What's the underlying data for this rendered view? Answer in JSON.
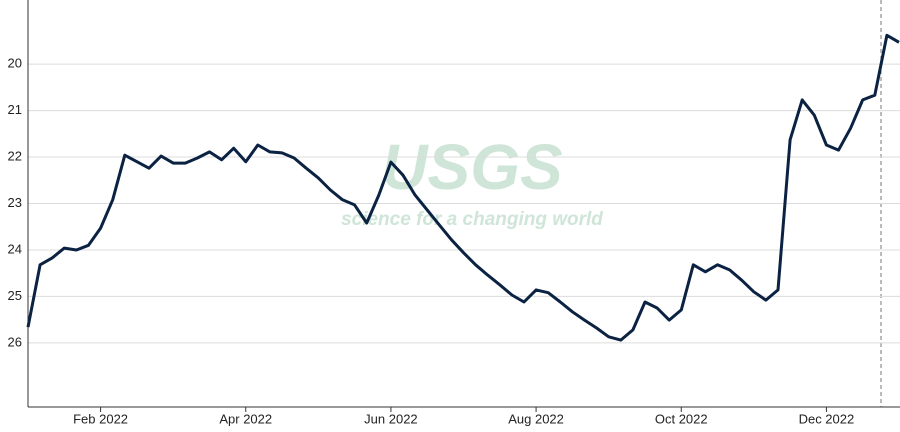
{
  "chart_data": {
    "type": "line",
    "watermark": {
      "title": "USGS",
      "subtitle": "science for a changing world"
    },
    "categories": [
      null,
      null,
      null,
      null,
      null,
      null,
      "Feb 2022",
      null,
      null,
      null,
      null,
      null,
      null,
      null,
      null,
      null,
      null,
      null,
      "Apr 2022",
      null,
      null,
      null,
      null,
      null,
      null,
      null,
      null,
      null,
      null,
      null,
      "Jun 2022",
      null,
      null,
      null,
      null,
      null,
      null,
      null,
      null,
      null,
      null,
      null,
      "Aug 2022",
      null,
      null,
      null,
      null,
      null,
      null,
      null,
      null,
      null,
      null,
      null,
      "Oct 2022",
      null,
      null,
      null,
      null,
      null,
      null,
      null,
      null,
      null,
      null,
      null,
      "Dec 2022",
      null,
      null,
      null,
      null,
      null,
      null
    ],
    "series": [
      {
        "color": "#0b2242",
        "values": [
          25.66,
          24.32,
          24.17,
          23.96,
          24.0,
          23.9,
          23.53,
          22.92,
          21.96,
          22.1,
          22.24,
          21.98,
          22.13,
          22.13,
          22.02,
          21.89,
          22.06,
          21.81,
          22.1,
          21.74,
          21.89,
          21.91,
          22.02,
          22.24,
          22.45,
          22.71,
          22.92,
          23.03,
          23.42,
          22.82,
          22.11,
          22.39,
          22.82,
          23.14,
          23.46,
          23.78,
          24.06,
          24.32,
          24.54,
          24.75,
          24.97,
          25.12,
          24.86,
          24.92,
          25.12,
          25.33,
          25.51,
          25.68,
          25.87,
          25.94,
          25.72,
          25.12,
          25.25,
          25.51,
          25.29,
          24.32,
          24.47,
          24.32,
          24.43,
          24.65,
          24.9,
          25.08,
          24.86,
          21.63,
          20.77,
          21.1,
          21.74,
          21.85,
          21.38,
          20.77,
          20.67,
          19.38,
          19.53
        ]
      }
    ],
    "ylim": [
      18.62,
      27.38
    ],
    "y_inverted": true,
    "yticks": [
      20,
      21,
      22,
      23,
      24,
      25,
      26
    ],
    "grid": true
  }
}
